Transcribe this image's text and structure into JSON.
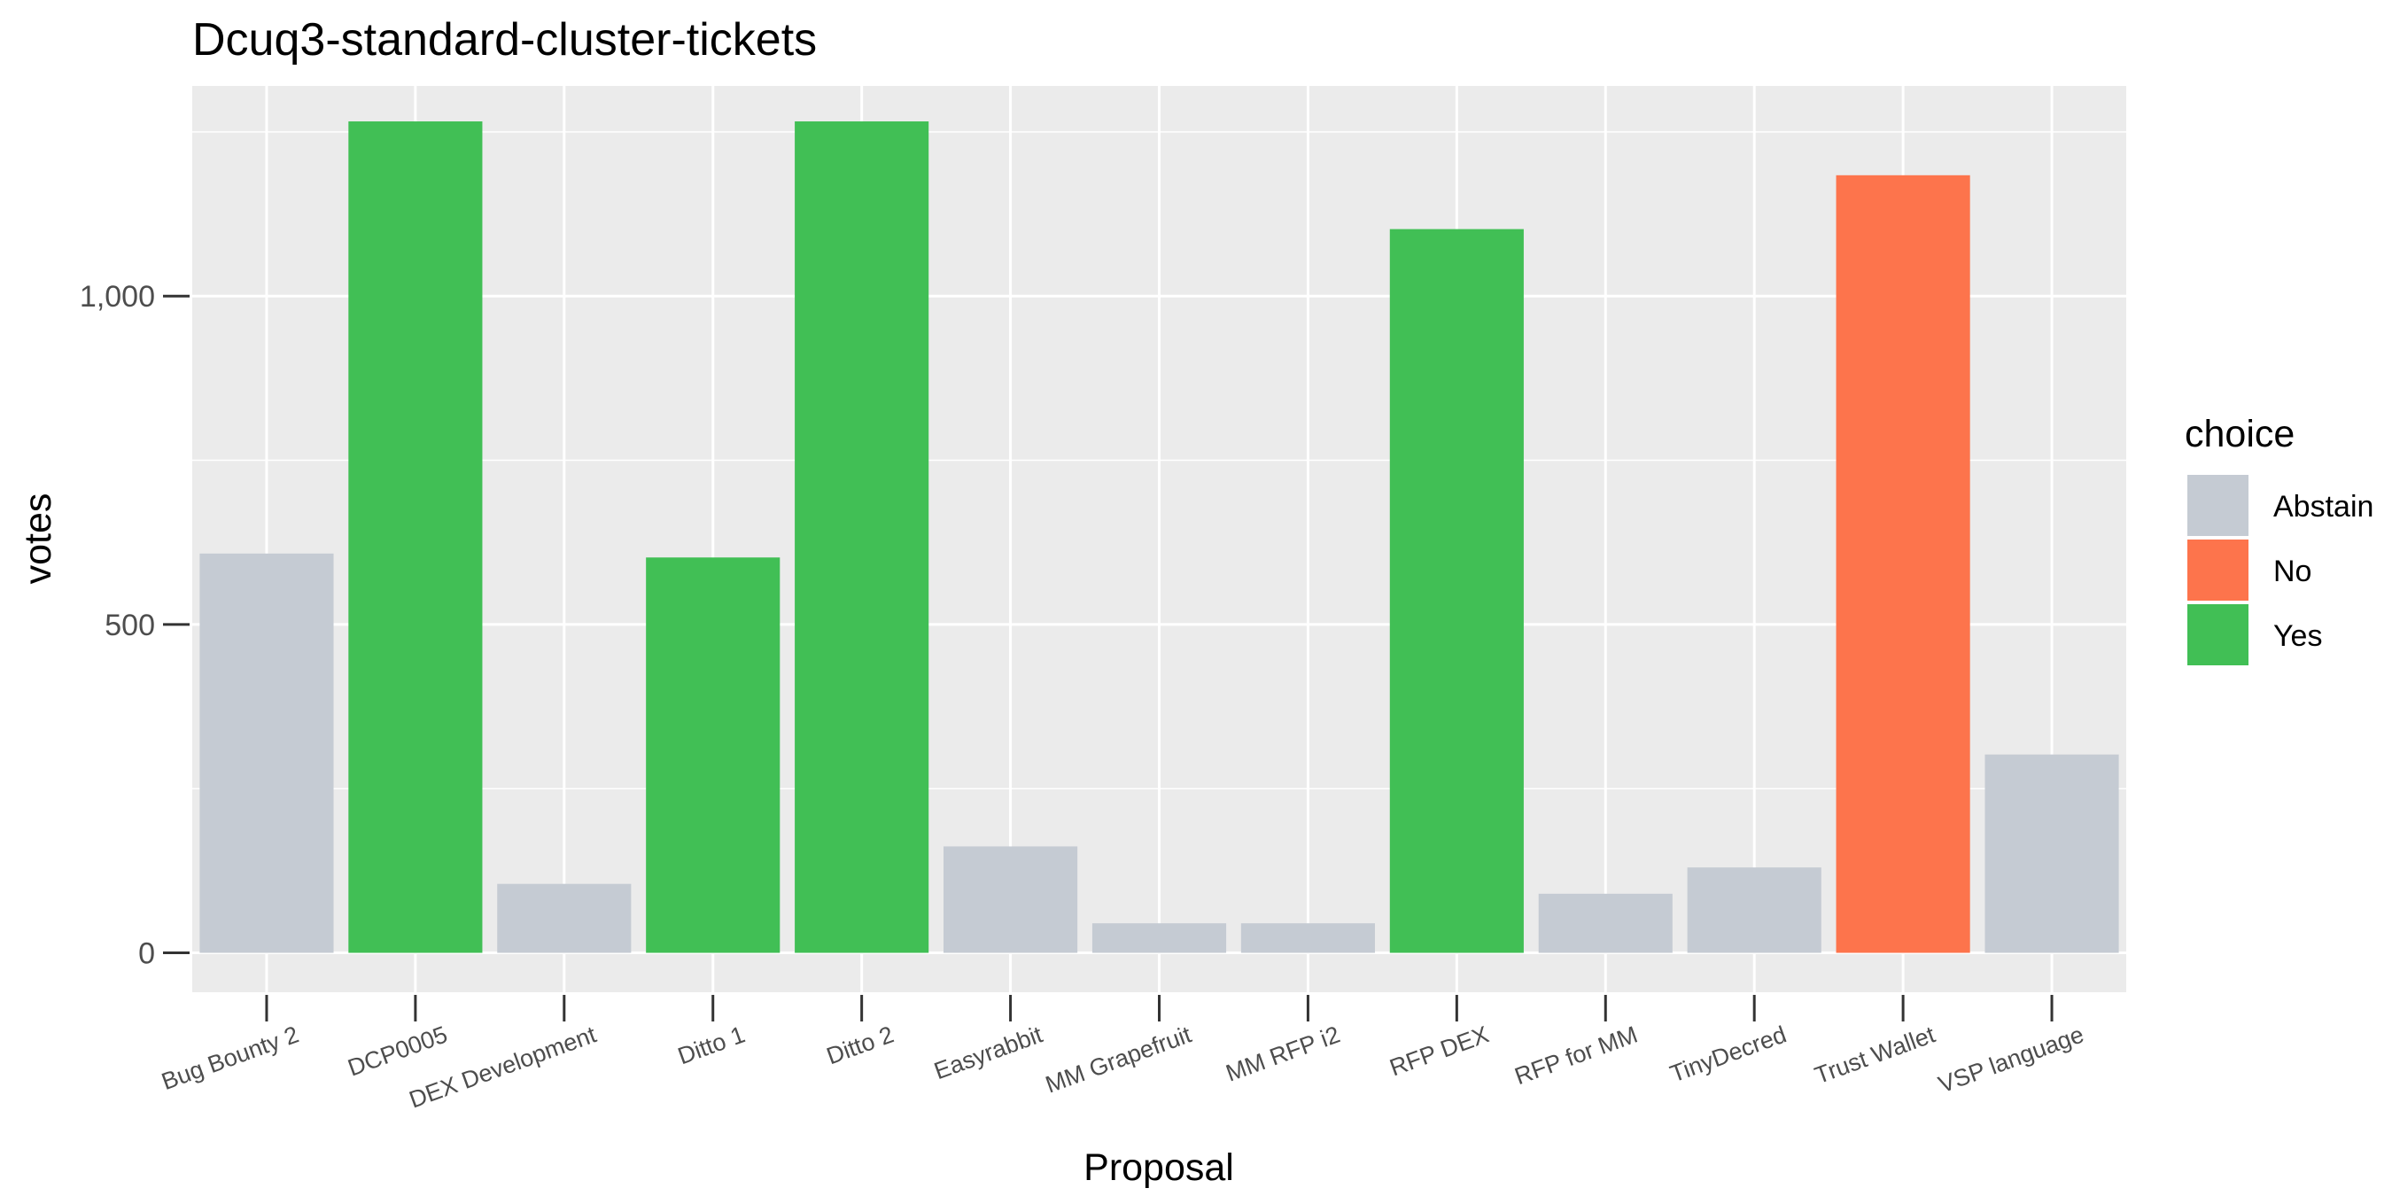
{
  "chart_data": {
    "type": "bar",
    "title": "Dcuq3-standard-cluster-tickets",
    "xlabel": "Proposal",
    "ylabel": "votes",
    "ylim": [
      -60,
      1320
    ],
    "yticks": [
      0,
      500,
      1000
    ],
    "ytick_labels": [
      "0",
      "500",
      "1,000"
    ],
    "grid": true,
    "legend_position": "right",
    "legend_title": "choice",
    "categories": [
      "Bug Bounty 2",
      "DCP0005",
      "DEX Development",
      "Ditto 1",
      "Ditto 2",
      "Easyrabbit",
      "MM Grapefruit",
      "MM RFP i2",
      "RFP DEX",
      "RFP for MM",
      "TinyDecred",
      "Trust Wallet",
      "VSP language"
    ],
    "values": [
      608,
      1266,
      105,
      602,
      1266,
      162,
      45,
      45,
      1102,
      90,
      130,
      1184,
      302
    ],
    "choices": [
      "Abstain",
      "Yes",
      "Abstain",
      "Yes",
      "Yes",
      "Abstain",
      "Abstain",
      "Abstain",
      "Yes",
      "Abstain",
      "Abstain",
      "No",
      "Abstain"
    ],
    "legend": [
      {
        "name": "Abstain",
        "color": "#c5cbd3"
      },
      {
        "name": "No",
        "color": "#fd744c"
      },
      {
        "name": "Yes",
        "color": "#41bf55"
      }
    ]
  }
}
